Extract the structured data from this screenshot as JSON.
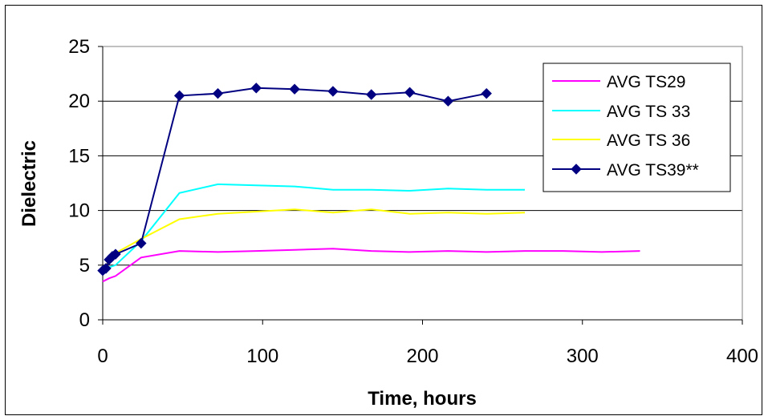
{
  "chart_data": {
    "type": "line",
    "title": "",
    "xlabel": "Time, hours",
    "ylabel": "Dielectric",
    "xlim": [
      0,
      400
    ],
    "ylim": [
      0,
      25
    ],
    "xticks": [
      "0",
      "100",
      "200",
      "300",
      "400"
    ],
    "yticks": [
      "0",
      "5",
      "10",
      "15",
      "20",
      "25"
    ],
    "grid": "horizontal",
    "legend_position": "top-right",
    "series": [
      {
        "name": "AVG TS29",
        "color": "#ff00ff",
        "marker": "none",
        "x": [
          0,
          4,
          8,
          24,
          48,
          72,
          96,
          120,
          144,
          168,
          192,
          216,
          240,
          264,
          288,
          312,
          336
        ],
        "y": [
          3.5,
          3.8,
          4.0,
          5.7,
          6.3,
          6.2,
          6.3,
          6.4,
          6.5,
          6.3,
          6.2,
          6.3,
          6.2,
          6.3,
          6.3,
          6.2,
          6.3
        ]
      },
      {
        "name": "AVG TS 33",
        "color": "#00ffff",
        "marker": "none",
        "x": [
          0,
          4,
          8,
          24,
          48,
          72,
          96,
          120,
          144,
          168,
          192,
          216,
          240,
          264
        ],
        "y": [
          4.4,
          4.8,
          5.0,
          7.2,
          11.6,
          12.4,
          12.3,
          12.2,
          11.9,
          11.9,
          11.8,
          12.0,
          11.9,
          11.9
        ]
      },
      {
        "name": "AVG TS 36",
        "color": "#ffff00",
        "marker": "none",
        "x": [
          0,
          4,
          8,
          24,
          48,
          72,
          96,
          120,
          144,
          168,
          192,
          216,
          240,
          264
        ],
        "y": [
          4.5,
          5.4,
          6.1,
          7.4,
          9.2,
          9.7,
          9.9,
          10.1,
          9.8,
          10.1,
          9.7,
          9.8,
          9.7,
          9.8
        ]
      },
      {
        "name": "AVG TS39**",
        "color": "#000080",
        "marker": "diamond",
        "x": [
          0,
          2,
          4,
          6,
          8,
          24,
          48,
          72,
          96,
          120,
          144,
          168,
          192,
          216,
          240
        ],
        "y": [
          4.5,
          4.7,
          5.5,
          5.8,
          6.0,
          7.0,
          20.5,
          20.7,
          21.2,
          21.1,
          20.9,
          20.6,
          20.8,
          20.0,
          20.7
        ]
      }
    ]
  }
}
